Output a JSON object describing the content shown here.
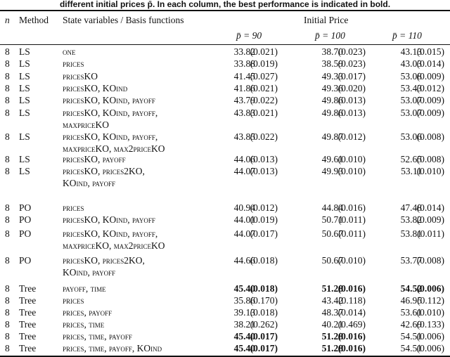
{
  "caption": "different initial prices p̄. In each column, the best performance is indicated in bold.",
  "header": {
    "n": "n",
    "method": "Method",
    "state": "State variables / Basis functions",
    "group": "Initial Price",
    "cols": [
      "p̄ = 90",
      "p̄ = 100",
      "p̄ = 110"
    ]
  },
  "rows": [
    {
      "n": "8",
      "method": "LS",
      "state": [
        "one"
      ],
      "vals": [
        [
          "33.82",
          "(0.021)",
          false
        ],
        [
          "38.70",
          "(0.023)",
          false
        ],
        [
          "43.13",
          "(0.015)",
          false
        ]
      ]
    },
    {
      "n": "8",
      "method": "LS",
      "state": [
        "prices"
      ],
      "vals": [
        [
          "33.88",
          "(0.019)",
          false
        ],
        [
          "38.59",
          "(0.023)",
          false
        ],
        [
          "43.03",
          "(0.014)",
          false
        ]
      ]
    },
    {
      "n": "8",
      "method": "LS",
      "state": [
        "pricesKO"
      ],
      "vals": [
        [
          "41.45",
          "(0.027)",
          false
        ],
        [
          "49.33",
          "(0.017)",
          false
        ],
        [
          "53.08",
          "(0.009)",
          false
        ]
      ]
    },
    {
      "n": "8",
      "method": "LS",
      "state": [
        "pricesKO, KOind"
      ],
      "vals": [
        [
          "41.86",
          "(0.021)",
          false
        ],
        [
          "49.36",
          "(0.020)",
          false
        ],
        [
          "53.43",
          "(0.012)",
          false
        ]
      ]
    },
    {
      "n": "8",
      "method": "LS",
      "state": [
        "pricesKO, KOind, payoff"
      ],
      "vals": [
        [
          "43.79",
          "(0.022)",
          false
        ],
        [
          "49.86",
          "(0.013)",
          false
        ],
        [
          "53.07",
          "(0.009)",
          false
        ]
      ]
    },
    {
      "n": "8",
      "method": "LS",
      "state": [
        "pricesKO, KOind, payoff,",
        "maxpriceKO"
      ],
      "vals": [
        [
          "43.83",
          "(0.021)",
          false
        ],
        [
          "49.86",
          "(0.013)",
          false
        ],
        [
          "53.07",
          "(0.009)",
          false
        ]
      ]
    },
    {
      "n": "8",
      "method": "LS",
      "state": [
        "pricesKO, KOind, payoff,",
        "maxpriceKO, max2priceKO"
      ],
      "vals": [
        [
          "43.85",
          "(0.022)",
          false
        ],
        [
          "49.87",
          "(0.012)",
          false
        ],
        [
          "53.06",
          "(0.008)",
          false
        ]
      ]
    },
    {
      "n": "8",
      "method": "LS",
      "state": [
        "pricesKO, payoff"
      ],
      "vals": [
        [
          "44.06",
          "(0.013)",
          false
        ],
        [
          "49.61",
          "(0.010)",
          false
        ],
        [
          "52.65",
          "(0.008)",
          false
        ]
      ]
    },
    {
      "n": "8",
      "method": "LS",
      "state": [
        "pricesKO, prices2KO,",
        "KOind, payoff"
      ],
      "vals": [
        [
          "44.07",
          "(0.013)",
          false
        ],
        [
          "49.93",
          "(0.010)",
          false
        ],
        [
          "53.11",
          "(0.010)",
          false
        ]
      ]
    },
    {
      "n": "8",
      "method": "PO",
      "state": [
        "prices"
      ],
      "vals": [
        [
          "40.94",
          "(0.012)",
          false
        ],
        [
          "44.84",
          "(0.016)",
          false
        ],
        [
          "47.48",
          "(0.014)",
          false
        ]
      ]
    },
    {
      "n": "8",
      "method": "PO",
      "state": [
        "pricesKO, KOind, payoff"
      ],
      "vals": [
        [
          "44.01",
          "(0.019)",
          false
        ],
        [
          "50.71",
          "(0.011)",
          false
        ],
        [
          "53.82",
          "(0.009)",
          false
        ]
      ]
    },
    {
      "n": "8",
      "method": "PO",
      "state": [
        "pricesKO, KOind, payoff,",
        "maxpriceKO, max2priceKO"
      ],
      "vals": [
        [
          "44.07",
          "(0.017)",
          false
        ],
        [
          "50.67",
          "(0.011)",
          false
        ],
        [
          "53.81",
          "(0.011)",
          false
        ]
      ]
    },
    {
      "n": "8",
      "method": "PO",
      "state": [
        "pricesKO, prices2KO,",
        "KOind, payoff"
      ],
      "vals": [
        [
          "44.66",
          "(0.018)",
          false
        ],
        [
          "50.67",
          "(0.010)",
          false
        ],
        [
          "53.77",
          "(0.008)",
          false
        ]
      ]
    },
    {
      "n": "8",
      "method": "Tree",
      "state": [
        "payoff, time"
      ],
      "vals": [
        [
          "45.40",
          "(0.018)",
          true
        ],
        [
          "51.28",
          "(0.016)",
          true
        ],
        [
          "54.52",
          "(0.006)",
          true
        ]
      ]
    },
    {
      "n": "8",
      "method": "Tree",
      "state": [
        "prices"
      ],
      "vals": [
        [
          "35.86",
          "(0.170)",
          false
        ],
        [
          "43.42",
          "(0.118)",
          false
        ],
        [
          "46.95",
          "(0.112)",
          false
        ]
      ]
    },
    {
      "n": "8",
      "method": "Tree",
      "state": [
        "prices, payoff"
      ],
      "vals": [
        [
          "39.13",
          "(0.018)",
          false
        ],
        [
          "48.37",
          "(0.014)",
          false
        ],
        [
          "53.61",
          "(0.010)",
          false
        ]
      ]
    },
    {
      "n": "8",
      "method": "Tree",
      "state": [
        "prices, time"
      ],
      "vals": [
        [
          "38.21",
          "(0.262)",
          false
        ],
        [
          "40.21",
          "(0.469)",
          false
        ],
        [
          "42.69",
          "(0.133)",
          false
        ]
      ]
    },
    {
      "n": "8",
      "method": "Tree",
      "state": [
        "prices, time, payoff"
      ],
      "vals": [
        [
          "45.40",
          "(0.017)",
          true
        ],
        [
          "51.28",
          "(0.016)",
          true
        ],
        [
          "54.51",
          "(0.006)",
          false
        ]
      ]
    },
    {
      "n": "8",
      "method": "Tree",
      "state": [
        "prices, time, payoff, KOind"
      ],
      "vals": [
        [
          "45.40",
          "(0.017)",
          true
        ],
        [
          "51.28",
          "(0.016)",
          true
        ],
        [
          "54.51",
          "(0.006)",
          false
        ]
      ]
    }
  ]
}
